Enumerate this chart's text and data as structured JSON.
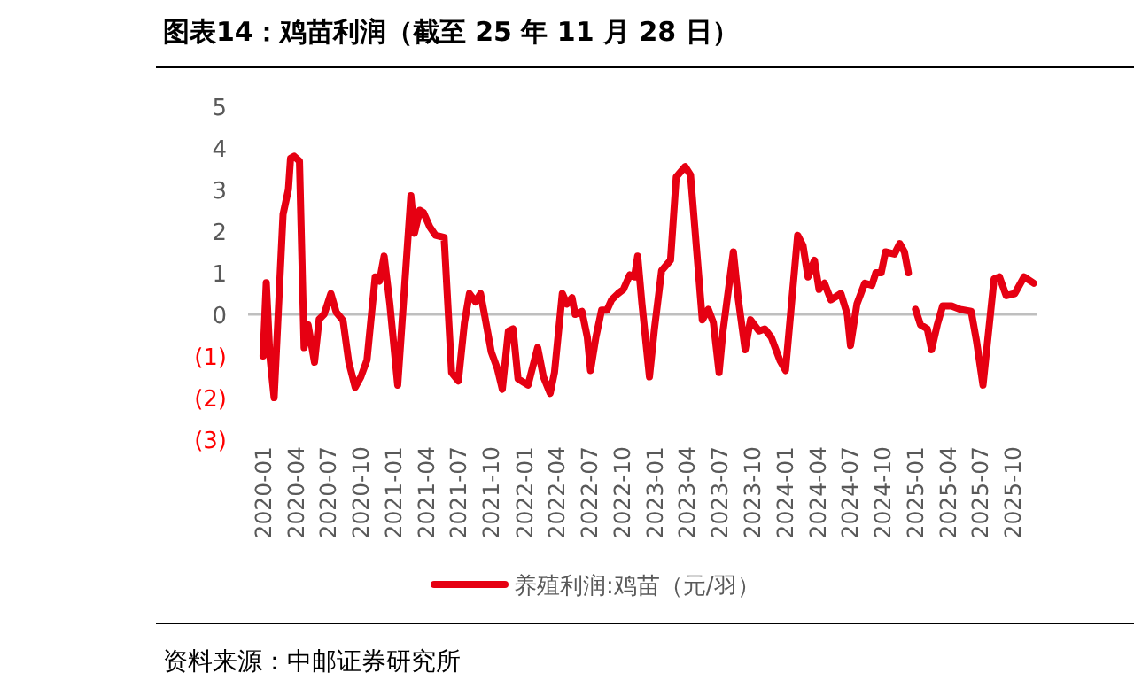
{
  "chart_data": {
    "type": "line",
    "title": "图表14：鸡苗利润（截至 25 年 11 月 28 日）",
    "x": [
      "2020-01-01",
      "2020-01-10",
      "2020-01-20",
      "2020-02-01",
      "2020-02-26",
      "2020-03-12",
      "2020-03-18",
      "2020-03-28",
      "2020-04-12",
      "2020-04-25",
      "2020-05-06",
      "2020-05-24",
      "2020-06-06",
      "2020-06-20",
      "2020-07-09",
      "2020-07-24",
      "2020-08-12",
      "2020-08-28",
      "2020-09-15",
      "2020-10-01",
      "2020-10-18",
      "2020-11-10",
      "2020-11-22",
      "2020-12-05",
      "2020-12-21",
      "2021-01-12",
      "2021-02-18",
      "2021-02-28",
      "2021-03-15",
      "2021-03-25",
      "2021-04-12",
      "2021-04-28",
      "2021-05-22",
      "2021-06-12",
      "2021-07-01",
      "2021-07-18",
      "2021-08-01",
      "2021-08-18",
      "2021-09-01",
      "2021-09-12",
      "2021-10-01",
      "2021-10-18",
      "2021-11-01",
      "2021-11-18",
      "2021-12-01",
      "2021-12-15",
      "2022-01-12",
      "2022-02-08",
      "2022-02-24",
      "2022-03-15",
      "2022-03-27",
      "2022-04-18",
      "2022-05-01",
      "2022-05-15",
      "2022-05-24",
      "2022-06-12",
      "2022-06-27",
      "2022-07-06",
      "2022-07-21",
      "2022-08-06",
      "2022-08-21",
      "2022-09-03",
      "2022-09-21",
      "2022-10-06",
      "2022-10-24",
      "2022-11-06",
      "2022-11-15",
      "2022-11-27",
      "2022-12-18",
      "2023-01-01",
      "2023-01-21",
      "2023-02-15",
      "2023-03-03",
      "2023-03-28",
      "2023-04-12",
      "2023-05-15",
      "2023-06-01",
      "2023-06-15",
      "2023-07-01",
      "2023-07-12",
      "2023-08-10",
      "2023-08-24",
      "2023-09-12",
      "2023-09-27",
      "2023-10-21",
      "2023-11-06",
      "2023-11-24",
      "2023-12-18",
      "2024-01-03",
      "2024-02-06",
      "2024-02-21",
      "2024-03-06",
      "2024-03-24",
      "2024-04-06",
      "2024-04-21",
      "2024-05-09",
      "2024-06-06",
      "2024-06-24",
      "2024-07-03",
      "2024-07-21",
      "2024-08-12",
      "2024-09-01",
      "2024-09-12",
      "2024-09-27",
      "2024-10-09",
      "2024-11-03",
      "2024-11-18",
      "2024-12-01",
      "2024-12-12",
      "2024-12-25",
      "2025-01-01",
      "2025-01-15",
      "2025-02-03",
      "2025-02-15",
      "2025-03-03",
      "2025-03-18",
      "2025-04-12",
      "2025-05-06",
      "2025-06-06",
      "2025-06-21",
      "2025-07-09",
      "2025-08-09",
      "2025-08-24",
      "2025-09-12",
      "2025-10-06",
      "2025-11-01",
      "2025-11-28"
    ],
    "series": [
      {
        "name": "养殖利润:鸡苗（元/羽）",
        "color": "#e60012",
        "values": [
          -1.0,
          0.76,
          -1.0,
          -2.0,
          2.4,
          3.0,
          3.75,
          3.8,
          3.68,
          -0.8,
          -0.25,
          -1.15,
          -0.12,
          0.0,
          0.5,
          0.05,
          -0.15,
          -1.15,
          -1.75,
          -1.5,
          -1.1,
          0.9,
          0.8,
          1.4,
          0.25,
          -1.7,
          2.85,
          1.95,
          2.5,
          2.45,
          2.1,
          1.9,
          1.85,
          -1.4,
          -1.6,
          -0.2,
          0.5,
          0.3,
          0.5,
          0.0,
          -0.9,
          -1.3,
          -1.8,
          -0.4,
          -0.35,
          -1.55,
          -1.7,
          -0.8,
          -1.5,
          -1.9,
          -1.4,
          0.5,
          0.25,
          0.4,
          0.0,
          0.07,
          -0.55,
          -1.35,
          -0.55,
          0.1,
          0.1,
          0.35,
          0.5,
          0.6,
          0.95,
          0.9,
          1.4,
          0.25,
          -1.5,
          -0.35,
          1.05,
          1.3,
          3.3,
          3.55,
          3.35,
          -0.13,
          0.12,
          -0.2,
          -1.4,
          -0.4,
          1.5,
          0.35,
          -0.85,
          -0.13,
          -0.4,
          -0.35,
          -0.55,
          -1.1,
          -1.35,
          1.9,
          1.65,
          0.9,
          1.3,
          0.6,
          0.75,
          0.35,
          0.5,
          0.0,
          -0.75,
          0.25,
          0.75,
          0.7,
          1.0,
          1.0,
          1.5,
          1.45,
          1.7,
          1.5,
          1.0,
          null,
          0.12,
          -0.25,
          -0.35,
          -0.85,
          -0.25,
          0.2,
          0.2,
          0.12,
          0.07,
          -0.65,
          -1.7,
          0.85,
          0.9,
          0.45,
          0.5,
          0.9,
          0.75
        ]
      }
    ],
    "xlim": [
      "2019-11-20",
      "2025-12-06"
    ],
    "xticks": [
      {
        "value": "2020-01-01",
        "label": "2020-01"
      },
      {
        "value": "2020-04-01",
        "label": "2020-04"
      },
      {
        "value": "2020-07-01",
        "label": "2020-07"
      },
      {
        "value": "2020-10-01",
        "label": "2020-10"
      },
      {
        "value": "2021-01-01",
        "label": "2021-01"
      },
      {
        "value": "2021-04-01",
        "label": "2021-04"
      },
      {
        "value": "2021-07-01",
        "label": "2021-07"
      },
      {
        "value": "2021-10-01",
        "label": "2021-10"
      },
      {
        "value": "2022-01-01",
        "label": "2022-01"
      },
      {
        "value": "2022-04-01",
        "label": "2022-04"
      },
      {
        "value": "2022-07-01",
        "label": "2022-07"
      },
      {
        "value": "2022-10-01",
        "label": "2022-10"
      },
      {
        "value": "2023-01-01",
        "label": "2023-01"
      },
      {
        "value": "2023-04-01",
        "label": "2023-04"
      },
      {
        "value": "2023-07-01",
        "label": "2023-07"
      },
      {
        "value": "2023-10-01",
        "label": "2023-10"
      },
      {
        "value": "2024-01-01",
        "label": "2024-01"
      },
      {
        "value": "2024-04-01",
        "label": "2024-04"
      },
      {
        "value": "2024-07-01",
        "label": "2024-07"
      },
      {
        "value": "2024-10-01",
        "label": "2024-10"
      },
      {
        "value": "2025-01-01",
        "label": "2025-01"
      },
      {
        "value": "2025-04-01",
        "label": "2025-04"
      },
      {
        "value": "2025-07-01",
        "label": "2025-07"
      },
      {
        "value": "2025-10-01",
        "label": "2025-10"
      }
    ],
    "ylim": [
      -3,
      5
    ],
    "yticks": [
      5,
      4,
      3,
      2,
      1,
      0,
      {
        "value": -1,
        "label": "(1)"
      },
      {
        "value": -2,
        "label": "(2)"
      },
      {
        "value": -3,
        "label": "(3)"
      }
    ],
    "legend": "bottom",
    "annotations": [
      "资料来源：中邮证券研究所"
    ]
  }
}
